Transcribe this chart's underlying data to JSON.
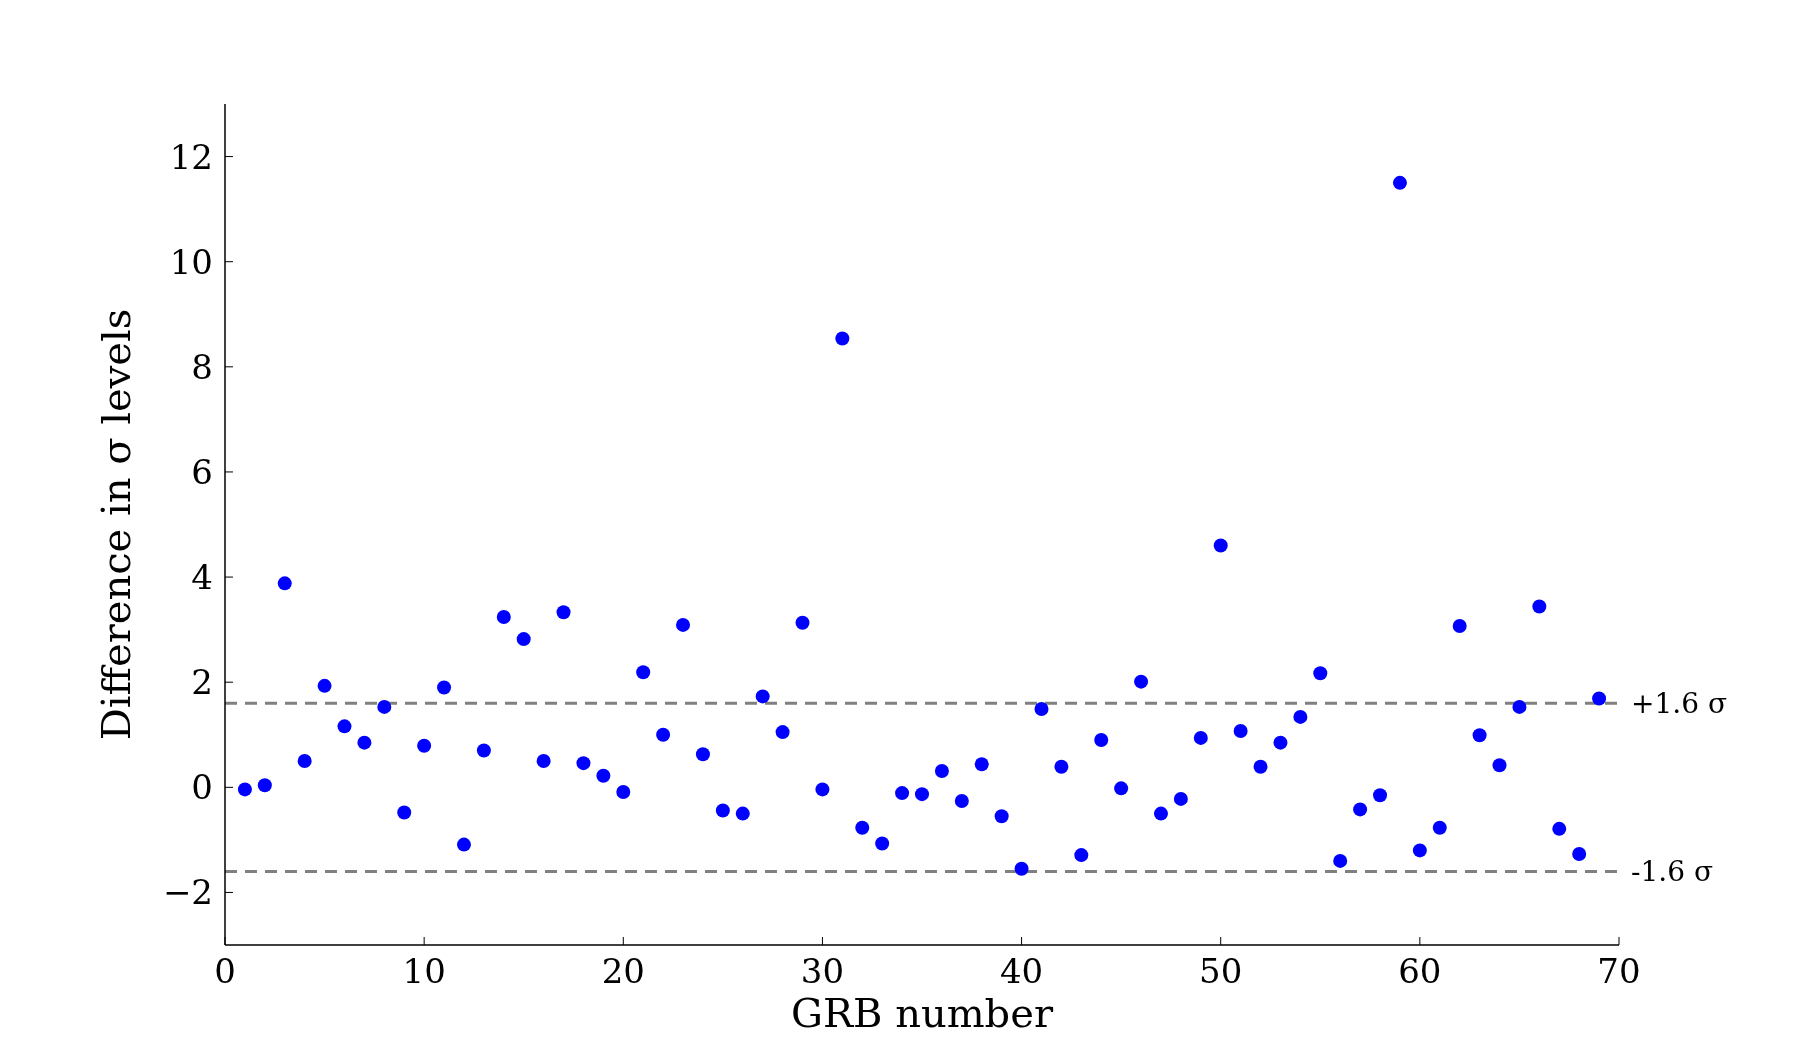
{
  "chart_data": {
    "type": "scatter",
    "xlabel": "GRB number",
    "ylabel": "Difference in σ levels",
    "x": [
      1,
      2,
      3,
      4,
      5,
      6,
      7,
      8,
      9,
      10,
      11,
      12,
      13,
      14,
      15,
      16,
      17,
      18,
      19,
      20,
      21,
      22,
      23,
      24,
      25,
      26,
      27,
      28,
      29,
      30,
      31,
      32,
      33,
      34,
      35,
      36,
      37,
      38,
      39,
      40,
      41,
      42,
      43,
      44,
      45,
      46,
      47,
      48,
      49,
      50,
      51,
      52,
      53,
      54,
      55,
      56,
      57,
      58,
      59,
      60,
      61,
      62,
      63,
      64,
      65,
      66,
      67,
      68,
      69
    ],
    "series": [
      {
        "color": "#0000ff",
        "values": [
          -0.04,
          0.04,
          3.88,
          0.5,
          1.93,
          1.16,
          0.85,
          1.53,
          -0.48,
          0.79,
          1.9,
          -1.09,
          0.7,
          3.24,
          2.82,
          0.5,
          3.33,
          0.46,
          0.22,
          -0.09,
          2.19,
          1.0,
          3.09,
          0.63,
          -0.44,
          -0.5,
          1.73,
          1.05,
          3.13,
          -0.04,
          8.54,
          -0.77,
          -1.07,
          -0.11,
          -0.13,
          0.31,
          -0.26,
          0.44,
          -0.55,
          -1.55,
          1.49,
          0.39,
          -1.29,
          0.9,
          -0.02,
          2.01,
          -0.5,
          -0.22,
          0.94,
          4.6,
          1.07,
          0.39,
          0.85,
          1.34,
          2.17,
          -1.4,
          -0.42,
          -0.15,
          11.5,
          -1.2,
          -0.77,
          3.07,
          0.99,
          0.42,
          1.53,
          3.44,
          -0.79,
          -1.27,
          1.69
        ]
      }
    ],
    "marker": "circle",
    "xlim": [
      0,
      70
    ],
    "ylim": [
      -3,
      13
    ],
    "xticks": [
      0,
      10,
      20,
      30,
      40,
      50,
      60,
      70
    ],
    "yticks": [
      {
        "value": -2,
        "label": "−2"
      },
      0,
      2,
      4,
      6,
      8,
      10,
      12
    ],
    "ref_lines": [
      {
        "axis": "y",
        "value": 1.6,
        "label": "+1.6 σ",
        "color": "#808080",
        "line_style": "dashed"
      },
      {
        "axis": "y",
        "value": -1.6,
        "label": "-1.6 σ",
        "color": "#808080",
        "line_style": "dashed"
      }
    ],
    "grid": false
  }
}
